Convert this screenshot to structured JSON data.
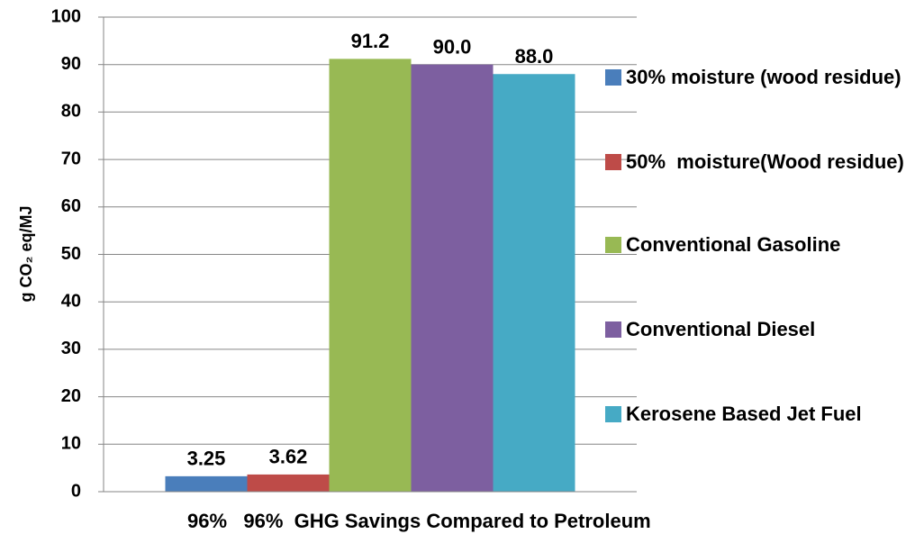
{
  "chart_data": {
    "type": "bar",
    "ylabel": "g CO₂ eq/MJ",
    "categories": [
      "96%   96%  GHG Savings Compared to Petroleum"
    ],
    "series": [
      {
        "name": "30% moisture (wood residue)",
        "color": "#4a7ebb",
        "values": [
          3.25
        ],
        "value_labels": [
          "3.25"
        ]
      },
      {
        "name": "50%  moisture(Wood residue)",
        "color": "#be4b48",
        "values": [
          3.62
        ],
        "value_labels": [
          "3.62"
        ]
      },
      {
        "name": "Conventional Gasoline",
        "color": "#98b954",
        "values": [
          91.2
        ],
        "value_labels": [
          "91.2"
        ]
      },
      {
        "name": "Conventional Diesel",
        "color": "#7d5fa0",
        "values": [
          90.0
        ],
        "value_labels": [
          "90.0"
        ]
      },
      {
        "name": "Kerosene Based Jet Fuel",
        "color": "#46aac5",
        "values": [
          88.0
        ],
        "value_labels": [
          "88.0"
        ]
      }
    ],
    "ylim": [
      0,
      100
    ],
    "yticks": [
      0,
      10,
      20,
      30,
      40,
      50,
      60,
      70,
      80,
      90,
      100
    ],
    "grid": true,
    "legend": "right"
  }
}
